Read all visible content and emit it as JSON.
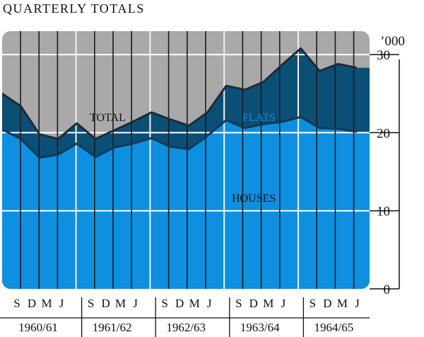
{
  "chart_data": {
    "type": "area",
    "title": "QUARTERLY TOTALS",
    "unit_label": "’000",
    "y_ticks": [
      "0",
      "10",
      "20",
      "30"
    ],
    "ylim": [
      0,
      33
    ],
    "quarter_labels": [
      "S",
      "D",
      "M",
      "J"
    ],
    "year_labels": [
      "1960/61",
      "1961/62",
      "1962/63",
      "1963/64",
      "1964/65"
    ],
    "stack": "houses + flats = total",
    "series": [
      {
        "name": "HOUSES",
        "color": "#0f8fe0",
        "values": [
          20.4,
          19.2,
          16.8,
          17.2,
          18.6,
          16.9,
          18.1,
          18.6,
          19.3,
          18.2,
          17.9,
          19.6,
          21.6,
          20.6,
          21.1,
          21.4,
          22.0,
          20.6,
          20.5,
          20.1
        ]
      },
      {
        "name": "FLATS",
        "color": "#0b4f77",
        "values": [
          4.6,
          4.2,
          3.0,
          2.0,
          2.6,
          2.3,
          2.2,
          2.8,
          3.3,
          3.5,
          3.0,
          3.0,
          4.4,
          4.9,
          5.4,
          7.3,
          8.8,
          7.3,
          8.3,
          8.2
        ]
      },
      {
        "name": "TOTAL",
        "color": "#a9a9a9",
        "values": [
          25.0,
          23.4,
          19.8,
          19.2,
          21.2,
          19.2,
          20.3,
          21.4,
          22.6,
          21.7,
          20.9,
          22.6,
          26.0,
          25.5,
          26.5,
          28.7,
          30.8,
          27.9,
          28.8,
          28.3
        ]
      }
    ],
    "grid": true
  }
}
